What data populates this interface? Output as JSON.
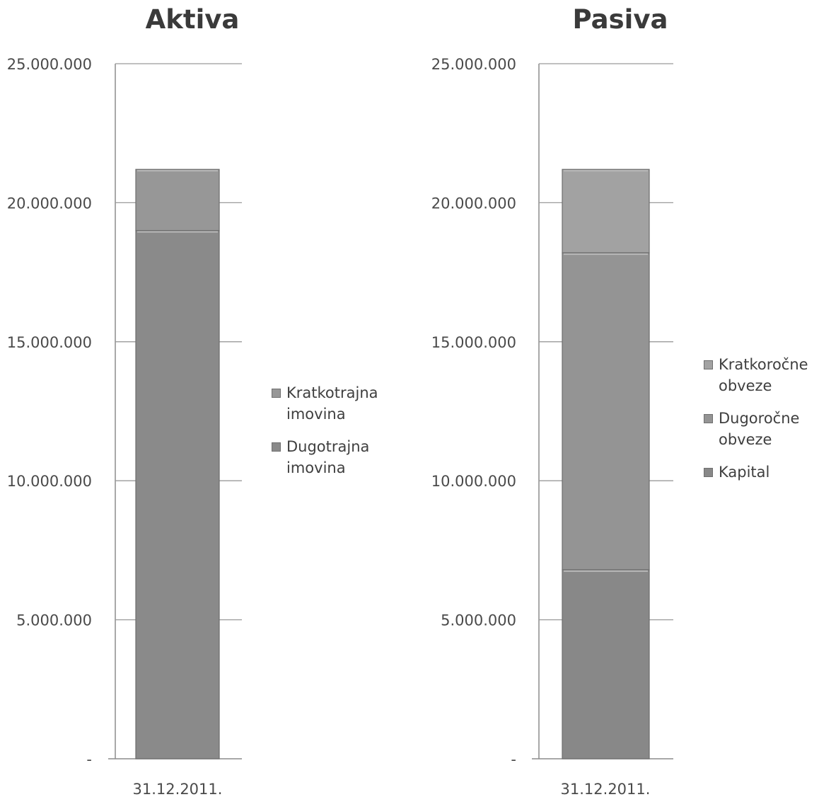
{
  "chart_data": [
    {
      "type": "bar",
      "stacked": true,
      "title": "Aktiva",
      "categories": [
        "31.12.2011."
      ],
      "ylim": [
        0,
        25000000
      ],
      "y_ticks": [
        0,
        5000000,
        10000000,
        15000000,
        20000000,
        25000000
      ],
      "y_tick_labels": [
        "-",
        "5.000.000",
        "10.000.000",
        "15.000.000",
        "20.000.000",
        "25.000.000"
      ],
      "legend_position": "right",
      "series": [
        {
          "name": "Dugotrajna imovina",
          "values": [
            19000000
          ],
          "color": "#8a8a8a"
        },
        {
          "name": "Kratkotrajna imovina",
          "values": [
            2200000
          ],
          "color": "#979797"
        }
      ],
      "legend": [
        {
          "label": "Kratkotrajna imovina",
          "color": "#979797"
        },
        {
          "label": "Dugotrajna imovina",
          "color": "#8a8a8a"
        }
      ]
    },
    {
      "type": "bar",
      "stacked": true,
      "title": "Pasiva",
      "categories": [
        "31.12.2011."
      ],
      "ylim": [
        0,
        25000000
      ],
      "y_ticks": [
        0,
        5000000,
        10000000,
        15000000,
        20000000,
        25000000
      ],
      "y_tick_labels": [
        "-",
        "5.000.000",
        "10.000.000",
        "15.000.000",
        "20.000.000",
        "25.000.000"
      ],
      "legend_position": "right",
      "series": [
        {
          "name": "Kapital",
          "values": [
            6800000
          ],
          "color": "#888888"
        },
        {
          "name": "Dugoročne obveze",
          "values": [
            11400000
          ],
          "color": "#949494"
        },
        {
          "name": "Kratkoročne obveze",
          "values": [
            3000000
          ],
          "color": "#a2a2a2"
        }
      ],
      "legend": [
        {
          "label": "Kratkoročne obveze",
          "color": "#a2a2a2"
        },
        {
          "label": "Dugoročne obveze",
          "color": "#949494"
        },
        {
          "label": "Kapital",
          "color": "#888888"
        }
      ]
    }
  ]
}
